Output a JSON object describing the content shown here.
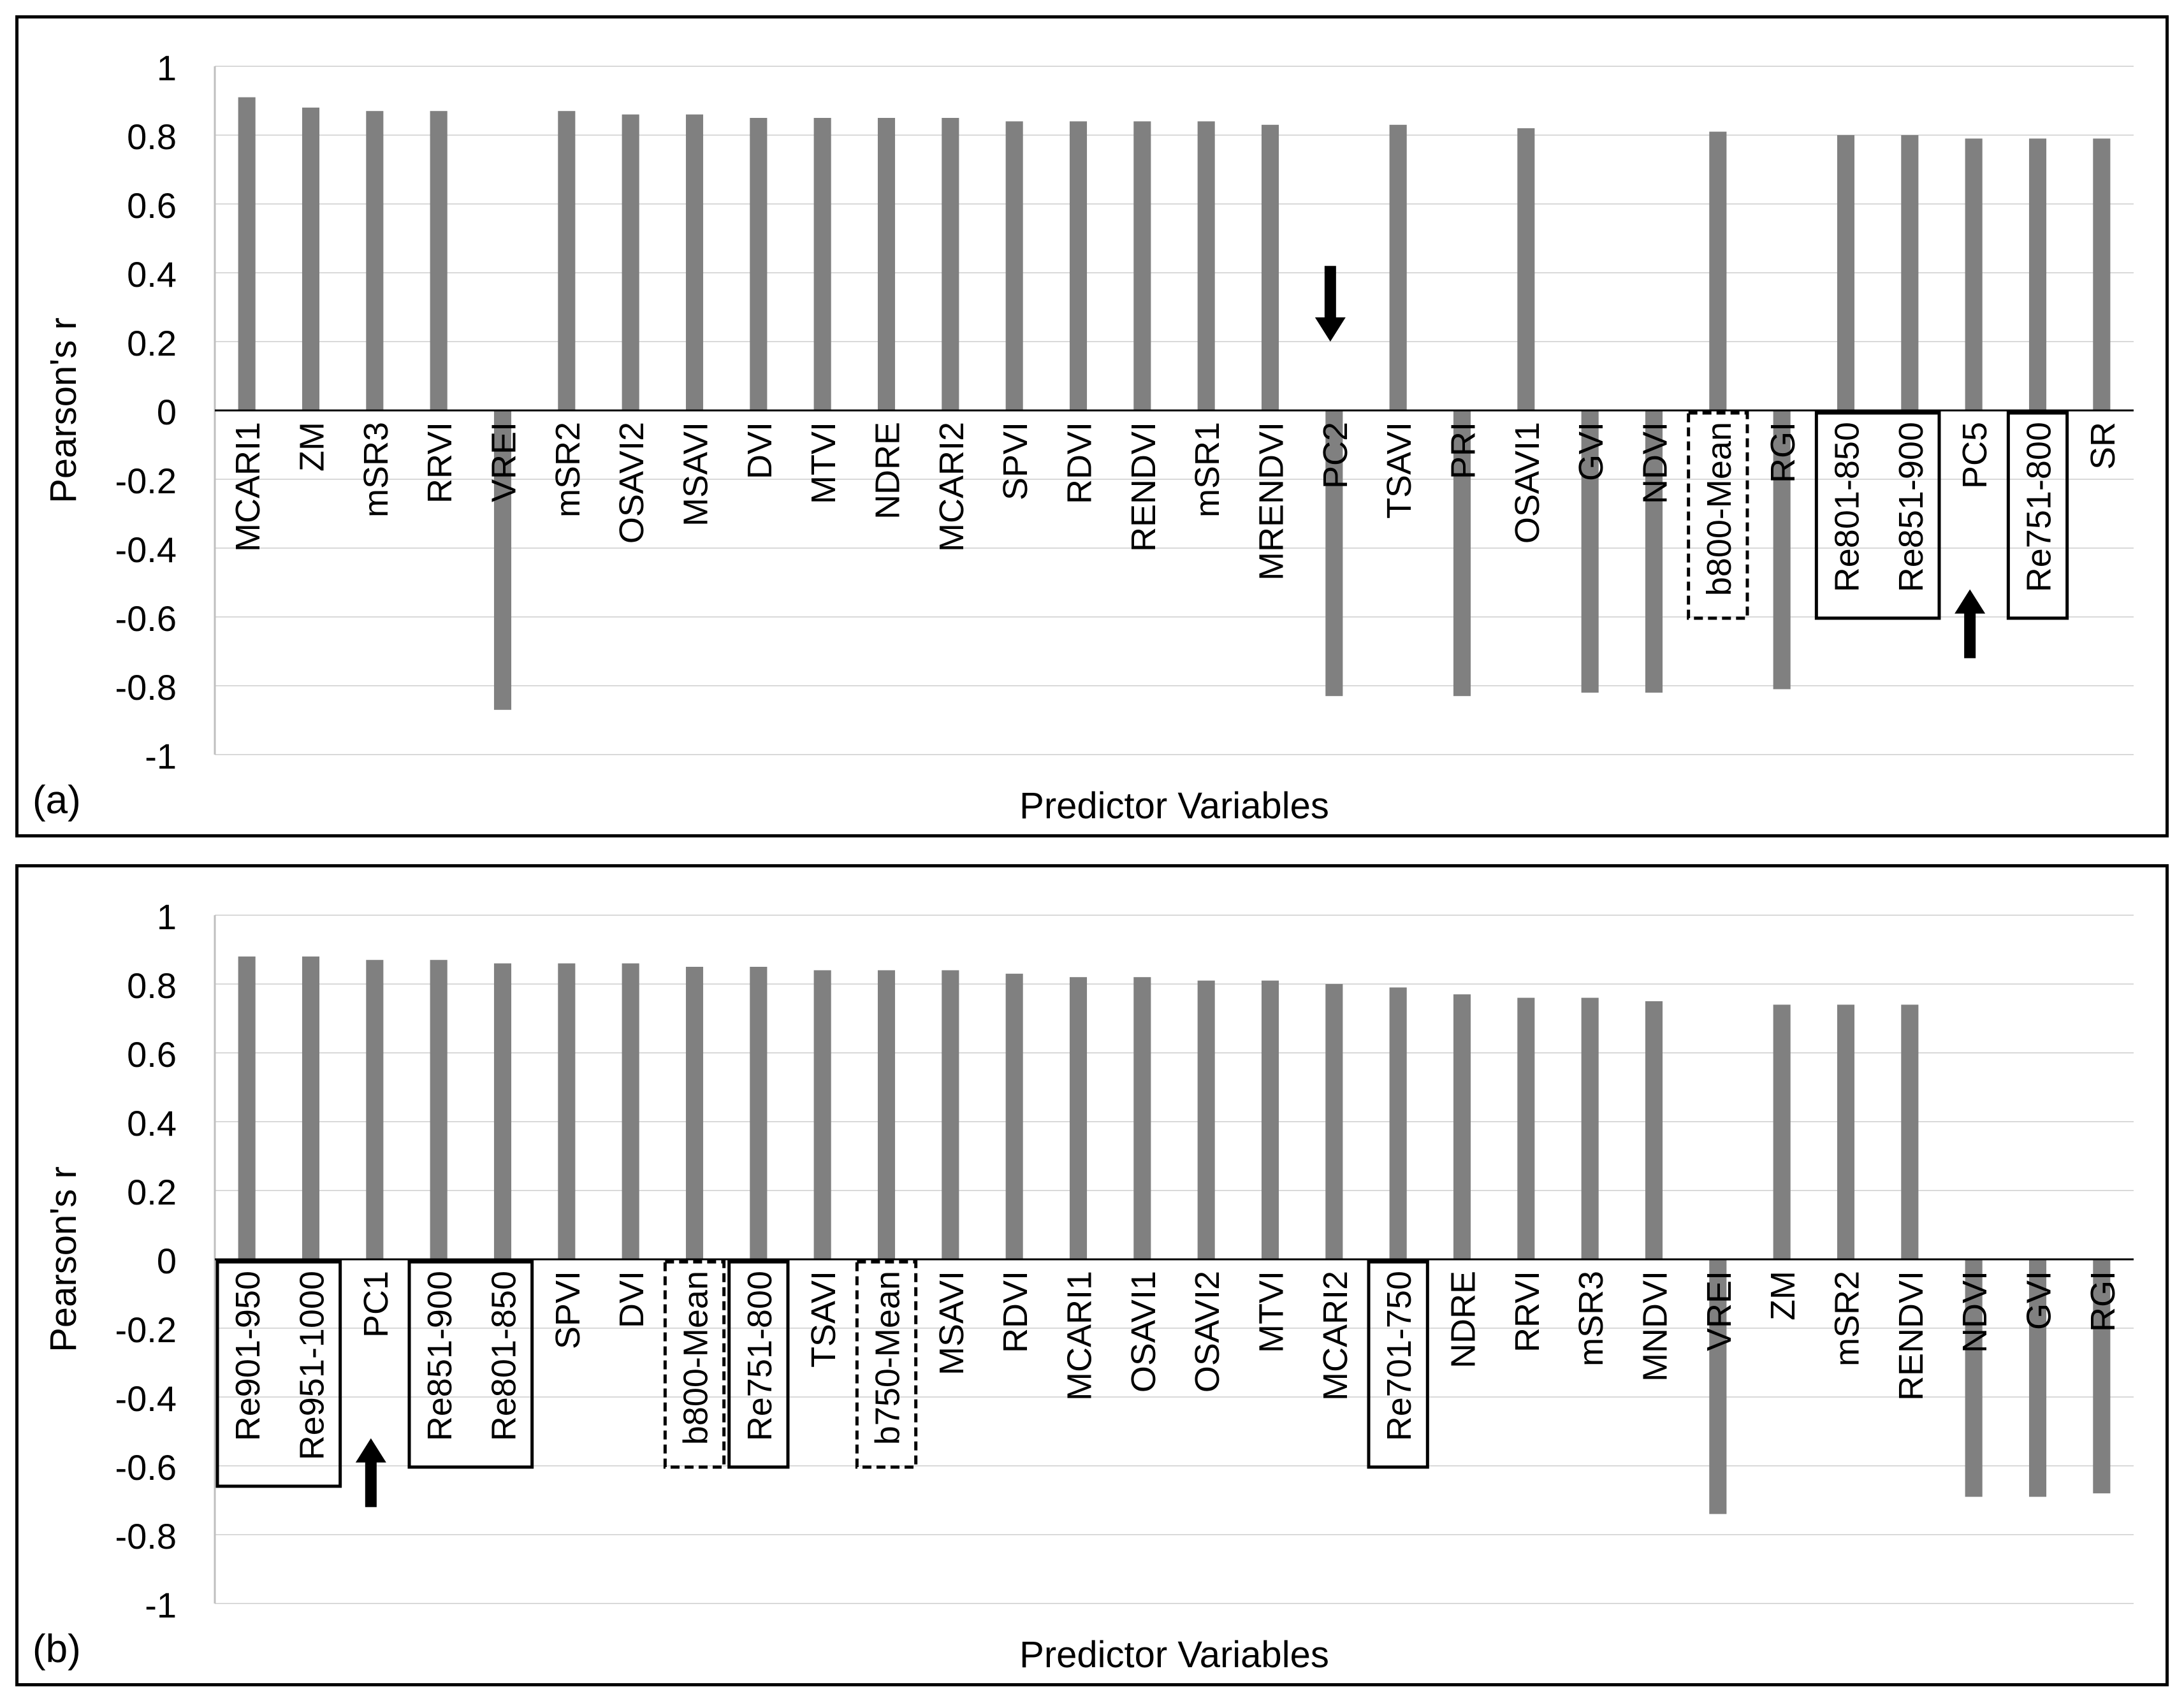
{
  "chart_data": [
    {
      "type": "bar",
      "panel_label": "(a)",
      "xlabel": "Predictor Variables",
      "ylabel": "Pearson's r",
      "ylim": [
        -1,
        1
      ],
      "yticks": [
        "1",
        "0.8",
        "0.6",
        "0.4",
        "0.2",
        "0",
        "-0.2",
        "-0.4",
        "-0.6",
        "-0.8",
        "-1"
      ],
      "grid": true,
      "categories": [
        "MCARI1",
        "ZM",
        "mSR3",
        "RRVI",
        "VREI",
        "mSR2",
        "OSAVI2",
        "MSAVI",
        "DVI",
        "MTVI",
        "NDRE",
        "MCARI2",
        "SPVI",
        "RDVI",
        "RENDVI",
        "mSR1",
        "MRENDVI",
        "PC2",
        "TSAVI",
        "PRI",
        "OSAVI1",
        "GVI",
        "NDVI",
        "b800-Mean",
        "RGI",
        "Re801-850",
        "Re851-900",
        "PC5",
        "Re751-800",
        "SR"
      ],
      "values": [
        0.91,
        0.88,
        0.87,
        0.87,
        -0.87,
        0.87,
        0.86,
        0.86,
        0.85,
        0.85,
        0.85,
        0.85,
        0.84,
        0.84,
        0.84,
        0.84,
        0.83,
        -0.83,
        0.83,
        -0.83,
        0.82,
        -0.82,
        -0.82,
        0.81,
        -0.81,
        0.8,
        0.8,
        0.79,
        0.79,
        0.79
      ],
      "annotations": {
        "solid_boxes": [
          [
            "Re801-850",
            "Re851-900"
          ],
          [
            "Re751-800"
          ]
        ],
        "dashed_boxes": [
          [
            "b800-Mean"
          ]
        ],
        "arrows": [
          {
            "category": "PC2",
            "direction": "down"
          },
          {
            "category": "PC5",
            "direction": "up"
          }
        ]
      }
    },
    {
      "type": "bar",
      "panel_label": "(b)",
      "xlabel": "Predictor Variables",
      "ylabel": "Pearson's r",
      "ylim": [
        -1,
        1
      ],
      "yticks": [
        "1",
        "0.8",
        "0.6",
        "0.4",
        "0.2",
        "0",
        "-0.2",
        "-0.4",
        "-0.6",
        "-0.8",
        "-1"
      ],
      "grid": true,
      "categories": [
        "Re901-950",
        "Re951-1000",
        "PC1",
        "Re851-900",
        "Re801-850",
        "SPVI",
        "DVI",
        "b800-Mean",
        "Re751-800",
        "TSAVI",
        "b750-Mean",
        "MSAVI",
        "RDVI",
        "MCARI1",
        "OSAVI1",
        "OSAVI2",
        "MTVI",
        "MCARI2",
        "Re701-750",
        "NDRE",
        "RRVI",
        "mSR3",
        "MNDVI",
        "VREI",
        "ZM",
        "mSR2",
        "RENDVI",
        "NDVI",
        "GVI",
        "RGI"
      ],
      "values": [
        0.88,
        0.88,
        0.87,
        0.87,
        0.86,
        0.86,
        0.86,
        0.85,
        0.85,
        0.84,
        0.84,
        0.84,
        0.83,
        0.82,
        0.82,
        0.81,
        0.81,
        0.8,
        0.79,
        0.77,
        0.76,
        0.76,
        0.75,
        -0.74,
        0.74,
        0.74,
        0.74,
        -0.69,
        -0.69,
        -0.68
      ],
      "annotations": {
        "solid_boxes": [
          [
            "Re901-950",
            "Re951-1000"
          ],
          [
            "Re851-900",
            "Re801-850"
          ],
          [
            "Re751-800"
          ],
          [
            "Re701-750"
          ]
        ],
        "dashed_boxes": [
          [
            "b800-Mean"
          ],
          [
            "b750-Mean"
          ]
        ],
        "arrows": [
          {
            "category": "PC1",
            "direction": "up"
          }
        ]
      }
    }
  ]
}
